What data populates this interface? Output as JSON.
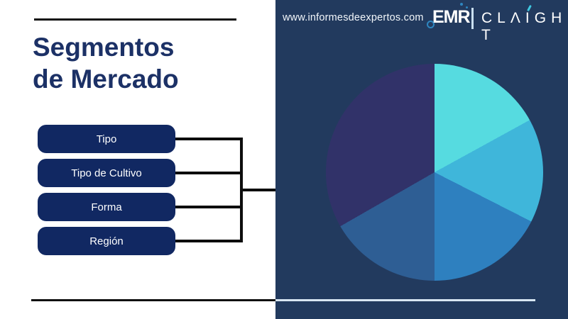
{
  "title": {
    "line1": "Segmentos",
    "line2": "de Mercado"
  },
  "segments": {
    "items": [
      {
        "label": "Tipo"
      },
      {
        "label": "Tipo de Cultivo"
      },
      {
        "label": "Forma"
      },
      {
        "label": "Región"
      }
    ]
  },
  "panel": {
    "website": "www.informesdeexpertos.com",
    "logo": {
      "emr_text": "EMR",
      "brand_text": "CLAIGHT",
      "accent_color": "#3FC8E0",
      "dot_color": "#2E86C0"
    },
    "background_color": "#223A5E"
  },
  "colors": {
    "title_navy": "#1C3166",
    "button_navy": "#112862",
    "connector_black": "#0d0d0d",
    "light_rule": "#D8E6F2"
  },
  "chart_data": {
    "type": "pie",
    "title": "",
    "values": [
      17.0,
      15.5,
      17.5,
      16.7,
      33.3
    ],
    "colors": [
      "#56DBE0",
      "#3FB6DA",
      "#2E80BF",
      "#2E5E94",
      "#313269"
    ],
    "labels": [
      "",
      "",
      "",
      "",
      ""
    ],
    "start_angle_deg": 0,
    "direction": "clockwise",
    "legend": "none"
  }
}
